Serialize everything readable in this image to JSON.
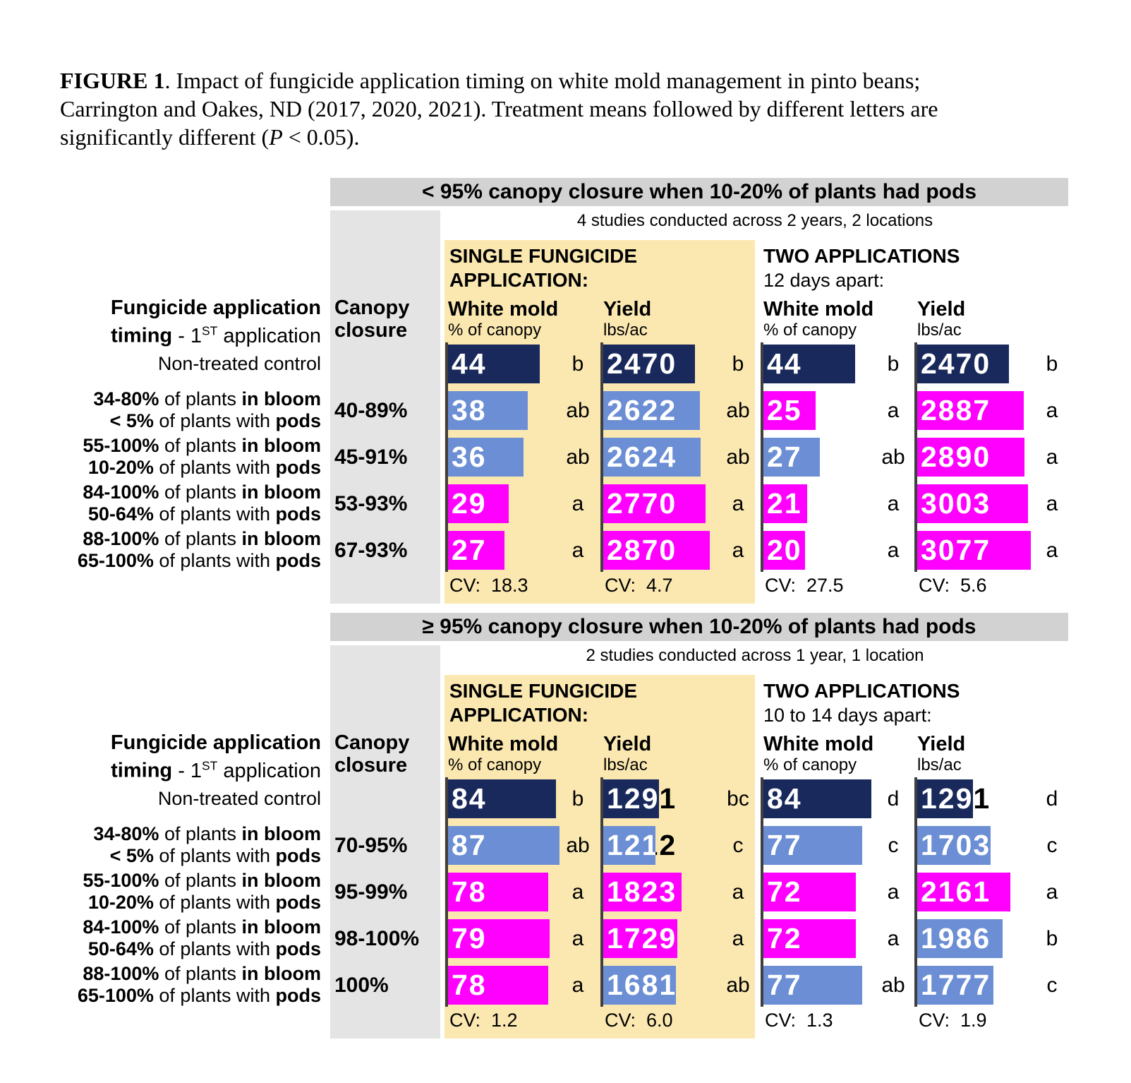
{
  "caption": {
    "segments": [
      {
        "t": "FIGURE 1",
        "b": true
      },
      {
        "t": ". Impact of fungicide application timing on white mold management in pinto beans;",
        "b": false
      },
      {
        "br": true
      },
      {
        "t": "Carrington and Oakes, ND (2017, 2020, 2021). Treatment means followed by different letters are",
        "b": false
      },
      {
        "br": true
      },
      {
        "t": "significantly different (",
        "b": false
      },
      {
        "t": "P",
        "i": true
      },
      {
        "t": " < 0.05).",
        "b": false
      }
    ]
  },
  "shared": {
    "left_header_line1": "Fungicide application",
    "left_header_line2_bold": "timing",
    "left_header_line2_pre": " - 1",
    "left_header_line2_sup": "ST",
    "left_header_line2_post": " application",
    "canopy_header_line1": "Canopy",
    "canopy_header_line2": "closure",
    "col_wm_title": "White mold",
    "col_wm_sub": "% of canopy",
    "col_yield_title": "Yield",
    "col_yield_sub": "lbs/ac"
  },
  "colors": {
    "navy": "#19295c",
    "blue": "#6b8ed4",
    "magenta": "#ff00ff",
    "tan": "#fbe8b1",
    "title_gray": "#d2d2d2",
    "column_gray": "#e4e4e4",
    "axis": "#3f3f3f"
  },
  "panels": [
    {
      "title": "< 95% canopy closure when 10-20% of plants had pods",
      "subtitle": "4 studies conducted across 2 years, 2 locations",
      "group1_line1": "SINGLE FUNGICIDE",
      "group1_line2": "APPLICATION:",
      "group2_line1": "TWO APPLICATIONS",
      "group2_line2": "12 days apart:",
      "columns": [
        {
          "axis_max": 54
        },
        {
          "axis_max": 3280
        },
        {
          "axis_max": 54
        },
        {
          "axis_max": 3280
        }
      ],
      "cv_labels": [
        "CV:  18.3",
        "CV:  4.7",
        "CV:  27.5",
        "CV:  5.6"
      ],
      "rows": [
        {
          "label_line1": [
            [
              "Non-treated control",
              false
            ]
          ],
          "label_line2": null,
          "canopy": "",
          "bars": [
            [
              "44",
              "b",
              "navy"
            ],
            [
              "2470",
              "b",
              "navy"
            ],
            [
              "44",
              "b",
              "navy"
            ],
            [
              "2470",
              "b",
              "navy"
            ]
          ]
        },
        {
          "label_line1": [
            [
              "34-80%",
              true
            ],
            [
              " of plants ",
              false
            ],
            [
              "in bloom",
              true
            ]
          ],
          "label_line2": [
            [
              "< 5%",
              true
            ],
            [
              " of plants with ",
              false
            ],
            [
              "pods",
              true
            ]
          ],
          "canopy": "40-89%",
          "bars": [
            [
              "38",
              "ab",
              "blue"
            ],
            [
              "2622",
              "ab",
              "blue"
            ],
            [
              "25",
              "a",
              "magenta"
            ],
            [
              "2887",
              "a",
              "magenta"
            ]
          ]
        },
        {
          "label_line1": [
            [
              "55-100%",
              true
            ],
            [
              " of plants ",
              false
            ],
            [
              "in bloom",
              true
            ]
          ],
          "label_line2": [
            [
              "10-20%",
              true
            ],
            [
              " of plants with ",
              false
            ],
            [
              "pods",
              true
            ]
          ],
          "canopy": "45-91%",
          "bars": [
            [
              "36",
              "ab",
              "blue"
            ],
            [
              "2624",
              "ab",
              "blue"
            ],
            [
              "27",
              "ab",
              "blue"
            ],
            [
              "2890",
              "a",
              "magenta"
            ]
          ]
        },
        {
          "label_line1": [
            [
              "84-100%",
              true
            ],
            [
              " of plants ",
              false
            ],
            [
              "in bloom",
              true
            ]
          ],
          "label_line2": [
            [
              "50-64%",
              true
            ],
            [
              " of plants with ",
              false
            ],
            [
              "pods",
              true
            ]
          ],
          "canopy": "53-93%",
          "bars": [
            [
              "29",
              "a",
              "magenta"
            ],
            [
              "2770",
              "a",
              "magenta"
            ],
            [
              "21",
              "a",
              "magenta"
            ],
            [
              "3003",
              "a",
              "magenta"
            ]
          ]
        },
        {
          "label_line1": [
            [
              "88-100%",
              true
            ],
            [
              " of plants ",
              false
            ],
            [
              "in bloom",
              true
            ]
          ],
          "label_line2": [
            [
              "65-100%",
              true
            ],
            [
              " of plants with ",
              false
            ],
            [
              "pods",
              true
            ]
          ],
          "canopy": "67-93%",
          "bars": [
            [
              "27",
              "a",
              "magenta"
            ],
            [
              "2870",
              "a",
              "magenta"
            ],
            [
              "20",
              "a",
              "magenta"
            ],
            [
              "3077",
              "a",
              "magenta"
            ]
          ]
        }
      ]
    },
    {
      "title": "≥ 95% canopy closure when 10-20% of plants had pods",
      "subtitle": "2 studies conducted across 1 year, 1 location",
      "group1_line1": "SINGLE FUNGICIDE",
      "group1_line2": "APPLICATION:",
      "group2_line1": "TWO APPLICATIONS",
      "group2_line2": "10 to 14 days apart:",
      "columns": [
        {
          "axis_max": 88
        },
        {
          "axis_max": 2820
        },
        {
          "axis_max": 88
        },
        {
          "axis_max": 2820
        }
      ],
      "cv_labels": [
        "CV:  1.2",
        "CV:  6.0",
        "CV:  1.3",
        "CV:  1.9"
      ],
      "rows": [
        {
          "label_line1": [
            [
              "Non-treated control",
              false
            ]
          ],
          "label_line2": null,
          "canopy": "",
          "bars": [
            [
              "84",
              "b",
              "navy"
            ],
            [
              "1291",
              "bc",
              "navy"
            ],
            [
              "84",
              "d",
              "navy"
            ],
            [
              "1291",
              "d",
              "navy"
            ]
          ]
        },
        {
          "label_line1": [
            [
              "34-80%",
              true
            ],
            [
              " of plants ",
              false
            ],
            [
              "in bloom",
              true
            ]
          ],
          "label_line2": [
            [
              "< 5%",
              true
            ],
            [
              " of plants with ",
              false
            ],
            [
              "pods",
              true
            ]
          ],
          "canopy": "70-95%",
          "bars": [
            [
              "87",
              "ab",
              "blue"
            ],
            [
              "1212",
              "c",
              "blue"
            ],
            [
              "77",
              "c",
              "blue"
            ],
            [
              "1703",
              "c",
              "blue"
            ]
          ]
        },
        {
          "label_line1": [
            [
              "55-100%",
              true
            ],
            [
              " of plants ",
              false
            ],
            [
              "in bloom",
              true
            ]
          ],
          "label_line2": [
            [
              "10-20%",
              true
            ],
            [
              " of plants with ",
              false
            ],
            [
              "pods",
              true
            ]
          ],
          "canopy": "95-99%",
          "bars": [
            [
              "78",
              "a",
              "magenta"
            ],
            [
              "1823",
              "a",
              "magenta"
            ],
            [
              "72",
              "a",
              "magenta"
            ],
            [
              "2161",
              "a",
              "magenta"
            ]
          ]
        },
        {
          "label_line1": [
            [
              "84-100%",
              true
            ],
            [
              " of plants ",
              false
            ],
            [
              "in bloom",
              true
            ]
          ],
          "label_line2": [
            [
              "50-64%",
              true
            ],
            [
              " of plants with ",
              false
            ],
            [
              "pods",
              true
            ]
          ],
          "canopy": "98-100%",
          "bars": [
            [
              "79",
              "a",
              "magenta"
            ],
            [
              "1729",
              "a",
              "magenta"
            ],
            [
              "72",
              "a",
              "magenta"
            ],
            [
              "1986",
              "b",
              "blue"
            ]
          ]
        },
        {
          "label_line1": [
            [
              "88-100%",
              true
            ],
            [
              " of plants ",
              false
            ],
            [
              "in bloom",
              true
            ]
          ],
          "label_line2": [
            [
              "65-100%",
              true
            ],
            [
              " of plants with ",
              false
            ],
            [
              "pods",
              true
            ]
          ],
          "canopy": "100%",
          "bars": [
            [
              "78",
              "a",
              "magenta"
            ],
            [
              "1681",
              "ab",
              "blue"
            ],
            [
              "77",
              "ab",
              "blue"
            ],
            [
              "1777",
              "c",
              "blue"
            ]
          ]
        }
      ]
    }
  ],
  "chart_data": [
    {
      "type": "bar",
      "title": "< 95% canopy closure when 10-20% of plants had pods",
      "subtitle": "4 studies conducted across 2 years, 2 locations",
      "categories": [
        "Non-treated control",
        "34-80% of plants in bloom / < 5% of plants with pods",
        "55-100% of plants in bloom / 10-20% of plants with pods",
        "84-100% of plants in bloom / 50-64% of plants with pods",
        "88-100% of plants in bloom / 65-100% of plants with pods"
      ],
      "canopy_closure": [
        "",
        "40-89%",
        "45-91%",
        "53-93%",
        "67-93%"
      ],
      "series": [
        {
          "name": "Single fungicide application - White mold (% of canopy)",
          "values": [
            44,
            38,
            36,
            29,
            27
          ],
          "letters": [
            "b",
            "ab",
            "ab",
            "a",
            "a"
          ],
          "cv": 18.3
        },
        {
          "name": "Single fungicide application - Yield (lbs/ac)",
          "values": [
            2470,
            2622,
            2624,
            2770,
            2870
          ],
          "letters": [
            "b",
            "ab",
            "ab",
            "a",
            "a"
          ],
          "cv": 4.7
        },
        {
          "name": "Two applications 12 days apart - White mold (% of canopy)",
          "values": [
            44,
            25,
            27,
            21,
            20
          ],
          "letters": [
            "b",
            "a",
            "ab",
            "a",
            "a"
          ],
          "cv": 27.5
        },
        {
          "name": "Two applications 12 days apart - Yield (lbs/ac)",
          "values": [
            2470,
            2887,
            2890,
            3003,
            3077
          ],
          "letters": [
            "b",
            "a",
            "a",
            "a",
            "a"
          ],
          "cv": 5.6
        }
      ],
      "layout": {
        "orientation": "horizontal",
        "grid": false,
        "value_labels_inside_bars": true
      }
    },
    {
      "type": "bar",
      "title": "≥ 95% canopy closure when 10-20% of plants had pods",
      "subtitle": "2 studies conducted across 1 year, 1 location",
      "categories": [
        "Non-treated control",
        "34-80% of plants in bloom / < 5% of plants with pods",
        "55-100% of plants in bloom / 10-20% of plants with pods",
        "84-100% of plants in bloom / 50-64% of plants with pods",
        "88-100% of plants in bloom / 65-100% of plants with pods"
      ],
      "canopy_closure": [
        "",
        "70-95%",
        "95-99%",
        "98-100%",
        "100%"
      ],
      "series": [
        {
          "name": "Single fungicide application - White mold (% of canopy)",
          "values": [
            84,
            87,
            78,
            79,
            78
          ],
          "letters": [
            "b",
            "ab",
            "a",
            "a",
            "a"
          ],
          "cv": 1.2
        },
        {
          "name": "Single fungicide application - Yield (lbs/ac)",
          "values": [
            1291,
            1212,
            1823,
            1729,
            1681
          ],
          "letters": [
            "bc",
            "c",
            "a",
            "a",
            "ab"
          ],
          "cv": 6.0
        },
        {
          "name": "Two applications 10 to 14 days apart - White mold (% of canopy)",
          "values": [
            84,
            77,
            72,
            72,
            77
          ],
          "letters": [
            "d",
            "c",
            "a",
            "a",
            "ab"
          ],
          "cv": 1.3
        },
        {
          "name": "Two applications 10 to 14 days apart - Yield (lbs/ac)",
          "values": [
            1291,
            1703,
            2161,
            1986,
            1777
          ],
          "letters": [
            "d",
            "c",
            "a",
            "b",
            "c"
          ],
          "cv": 1.9
        }
      ],
      "layout": {
        "orientation": "horizontal",
        "grid": false,
        "value_labels_inside_bars": true
      }
    }
  ]
}
